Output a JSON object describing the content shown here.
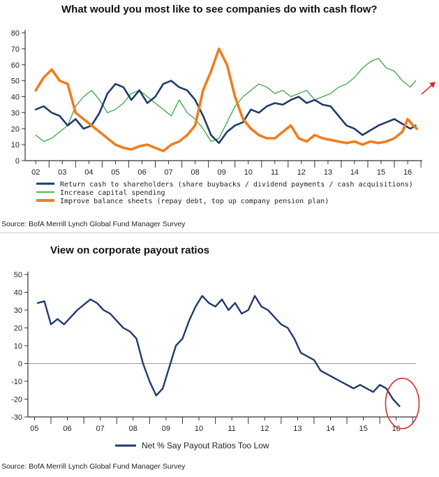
{
  "chart_data": [
    {
      "type": "line",
      "title": "What would you most like to see companies do with cash flow?",
      "source": "Source: BofA Merrill Lynch Global Fund Manager Survey",
      "ylim": [
        0,
        80
      ],
      "yticks": [
        "0",
        "10",
        "20",
        "30",
        "40",
        "50",
        "60",
        "70",
        "80"
      ],
      "xticks": [
        "02",
        "03",
        "04",
        "05",
        "06",
        "07",
        "08",
        "09",
        "10",
        "11",
        "12",
        "13",
        "14",
        "15",
        "16"
      ],
      "legend_position": "bottom",
      "series": [
        {
          "name": "Return cash to shareholders (share buybacks / dividend payments / cash acquisitions)",
          "color": "#1f3a6b",
          "points": [
            [
              2002.0,
              32
            ],
            [
              2002.3,
              34
            ],
            [
              2002.6,
              30
            ],
            [
              2002.9,
              28
            ],
            [
              2003.2,
              22
            ],
            [
              2003.5,
              26
            ],
            [
              2003.8,
              20
            ],
            [
              2004.1,
              22
            ],
            [
              2004.4,
              30
            ],
            [
              2004.7,
              42
            ],
            [
              2005.0,
              48
            ],
            [
              2005.3,
              46
            ],
            [
              2005.6,
              38
            ],
            [
              2005.9,
              44
            ],
            [
              2006.2,
              36
            ],
            [
              2006.5,
              40
            ],
            [
              2006.8,
              48
            ],
            [
              2007.1,
              50
            ],
            [
              2007.4,
              46
            ],
            [
              2007.7,
              44
            ],
            [
              2008.0,
              38
            ],
            [
              2008.3,
              28
            ],
            [
              2008.6,
              16
            ],
            [
              2008.9,
              11
            ],
            [
              2009.2,
              18
            ],
            [
              2009.5,
              22
            ],
            [
              2009.8,
              24
            ],
            [
              2010.1,
              32
            ],
            [
              2010.4,
              30
            ],
            [
              2010.7,
              34
            ],
            [
              2011.0,
              36
            ],
            [
              2011.3,
              35
            ],
            [
              2011.6,
              38
            ],
            [
              2011.9,
              40
            ],
            [
              2012.2,
              36
            ],
            [
              2012.5,
              38
            ],
            [
              2012.8,
              35
            ],
            [
              2013.1,
              34
            ],
            [
              2013.4,
              28
            ],
            [
              2013.7,
              22
            ],
            [
              2014.0,
              20
            ],
            [
              2014.3,
              16
            ],
            [
              2014.6,
              19
            ],
            [
              2014.9,
              22
            ],
            [
              2015.2,
              24
            ],
            [
              2015.5,
              26
            ],
            [
              2015.8,
              23
            ],
            [
              2016.1,
              20
            ],
            [
              2016.3,
              22
            ]
          ]
        },
        {
          "name": "Increase capital spending",
          "color": "#3aa64a",
          "points": [
            [
              2002.0,
              16
            ],
            [
              2002.3,
              12
            ],
            [
              2002.6,
              14
            ],
            [
              2002.9,
              18
            ],
            [
              2003.2,
              22
            ],
            [
              2003.5,
              34
            ],
            [
              2003.8,
              40
            ],
            [
              2004.1,
              44
            ],
            [
              2004.4,
              38
            ],
            [
              2004.7,
              30
            ],
            [
              2005.0,
              32
            ],
            [
              2005.3,
              36
            ],
            [
              2005.6,
              42
            ],
            [
              2005.9,
              44
            ],
            [
              2006.2,
              40
            ],
            [
              2006.5,
              36
            ],
            [
              2006.8,
              32
            ],
            [
              2007.1,
              28
            ],
            [
              2007.4,
              38
            ],
            [
              2007.7,
              30
            ],
            [
              2008.0,
              26
            ],
            [
              2008.3,
              20
            ],
            [
              2008.6,
              12
            ],
            [
              2008.9,
              14
            ],
            [
              2009.2,
              24
            ],
            [
              2009.5,
              34
            ],
            [
              2009.8,
              40
            ],
            [
              2010.1,
              44
            ],
            [
              2010.4,
              48
            ],
            [
              2010.7,
              46
            ],
            [
              2011.0,
              42
            ],
            [
              2011.3,
              44
            ],
            [
              2011.6,
              40
            ],
            [
              2011.9,
              42
            ],
            [
              2012.2,
              44
            ],
            [
              2012.5,
              38
            ],
            [
              2012.8,
              40
            ],
            [
              2013.1,
              42
            ],
            [
              2013.4,
              46
            ],
            [
              2013.7,
              48
            ],
            [
              2014.0,
              52
            ],
            [
              2014.3,
              58
            ],
            [
              2014.6,
              62
            ],
            [
              2014.9,
              64
            ],
            [
              2015.2,
              58
            ],
            [
              2015.5,
              56
            ],
            [
              2015.8,
              50
            ],
            [
              2016.1,
              46
            ],
            [
              2016.3,
              50
            ]
          ]
        },
        {
          "name": "Improve balance sheets (repay debt, top up company pension plan)",
          "color": "#f07d1e",
          "points": [
            [
              2002.0,
              44
            ],
            [
              2002.3,
              52
            ],
            [
              2002.6,
              57
            ],
            [
              2002.9,
              50
            ],
            [
              2003.2,
              48
            ],
            [
              2003.5,
              30
            ],
            [
              2003.8,
              26
            ],
            [
              2004.1,
              22
            ],
            [
              2004.4,
              18
            ],
            [
              2004.7,
              14
            ],
            [
              2005.0,
              10
            ],
            [
              2005.3,
              8
            ],
            [
              2005.6,
              7
            ],
            [
              2005.9,
              9
            ],
            [
              2006.2,
              10
            ],
            [
              2006.5,
              8
            ],
            [
              2006.8,
              6
            ],
            [
              2007.1,
              10
            ],
            [
              2007.4,
              12
            ],
            [
              2007.7,
              16
            ],
            [
              2008.0,
              22
            ],
            [
              2008.3,
              44
            ],
            [
              2008.6,
              56
            ],
            [
              2008.9,
              70
            ],
            [
              2009.2,
              60
            ],
            [
              2009.5,
              40
            ],
            [
              2009.8,
              26
            ],
            [
              2010.1,
              20
            ],
            [
              2010.4,
              16
            ],
            [
              2010.7,
              14
            ],
            [
              2011.0,
              14
            ],
            [
              2011.3,
              18
            ],
            [
              2011.6,
              22
            ],
            [
              2011.9,
              14
            ],
            [
              2012.2,
              12
            ],
            [
              2012.5,
              16
            ],
            [
              2012.8,
              14
            ],
            [
              2013.1,
              13
            ],
            [
              2013.4,
              12
            ],
            [
              2013.7,
              11
            ],
            [
              2014.0,
              12
            ],
            [
              2014.3,
              10
            ],
            [
              2014.6,
              12
            ],
            [
              2014.9,
              11
            ],
            [
              2015.2,
              12
            ],
            [
              2015.5,
              14
            ],
            [
              2015.8,
              18
            ],
            [
              2016.0,
              26
            ],
            [
              2016.2,
              22
            ],
            [
              2016.35,
              20
            ]
          ]
        }
      ]
    },
    {
      "type": "line",
      "title": "View on corporate payout ratios",
      "source": "Source: BofA Merrill Lynch Global Fund Manager Survey",
      "ylim": [
        -30,
        50
      ],
      "yticks": [
        "-30",
        "-20",
        "-10",
        "0",
        "10",
        "20",
        "30",
        "40",
        "50"
      ],
      "xticks": [
        "05",
        "06",
        "07",
        "08",
        "09",
        "10",
        "11",
        "12",
        "13",
        "14",
        "15",
        "16"
      ],
      "zero_line": true,
      "highlight_circle_on_last_point": true,
      "legend_position": "bottom",
      "series": [
        {
          "name": "Net % Say Payout Ratios Too Low",
          "color": "#1f3a6b",
          "points": [
            [
              2005.1,
              34
            ],
            [
              2005.3,
              35
            ],
            [
              2005.5,
              22
            ],
            [
              2005.7,
              25
            ],
            [
              2005.9,
              22
            ],
            [
              2006.1,
              26
            ],
            [
              2006.3,
              30
            ],
            [
              2006.5,
              33
            ],
            [
              2006.7,
              36
            ],
            [
              2006.9,
              34
            ],
            [
              2007.1,
              30
            ],
            [
              2007.3,
              28
            ],
            [
              2007.5,
              24
            ],
            [
              2007.7,
              20
            ],
            [
              2007.9,
              18
            ],
            [
              2008.1,
              14
            ],
            [
              2008.3,
              0
            ],
            [
              2008.5,
              -10
            ],
            [
              2008.7,
              -18
            ],
            [
              2008.9,
              -14
            ],
            [
              2009.1,
              -2
            ],
            [
              2009.3,
              10
            ],
            [
              2009.5,
              14
            ],
            [
              2009.7,
              24
            ],
            [
              2009.9,
              32
            ],
            [
              2010.1,
              38
            ],
            [
              2010.3,
              34
            ],
            [
              2010.5,
              32
            ],
            [
              2010.7,
              36
            ],
            [
              2010.9,
              30
            ],
            [
              2011.1,
              34
            ],
            [
              2011.3,
              28
            ],
            [
              2011.5,
              30
            ],
            [
              2011.7,
              38
            ],
            [
              2011.9,
              32
            ],
            [
              2012.1,
              30
            ],
            [
              2012.3,
              26
            ],
            [
              2012.5,
              22
            ],
            [
              2012.7,
              20
            ],
            [
              2012.9,
              14
            ],
            [
              2013.1,
              6
            ],
            [
              2013.3,
              4
            ],
            [
              2013.5,
              2
            ],
            [
              2013.7,
              -4
            ],
            [
              2013.9,
              -6
            ],
            [
              2014.1,
              -8
            ],
            [
              2014.3,
              -10
            ],
            [
              2014.5,
              -12
            ],
            [
              2014.7,
              -14
            ],
            [
              2014.9,
              -12
            ],
            [
              2015.1,
              -14
            ],
            [
              2015.3,
              -16
            ],
            [
              2015.5,
              -12
            ],
            [
              2015.7,
              -14
            ],
            [
              2015.9,
              -20
            ],
            [
              2016.1,
              -24
            ]
          ]
        }
      ]
    }
  ]
}
